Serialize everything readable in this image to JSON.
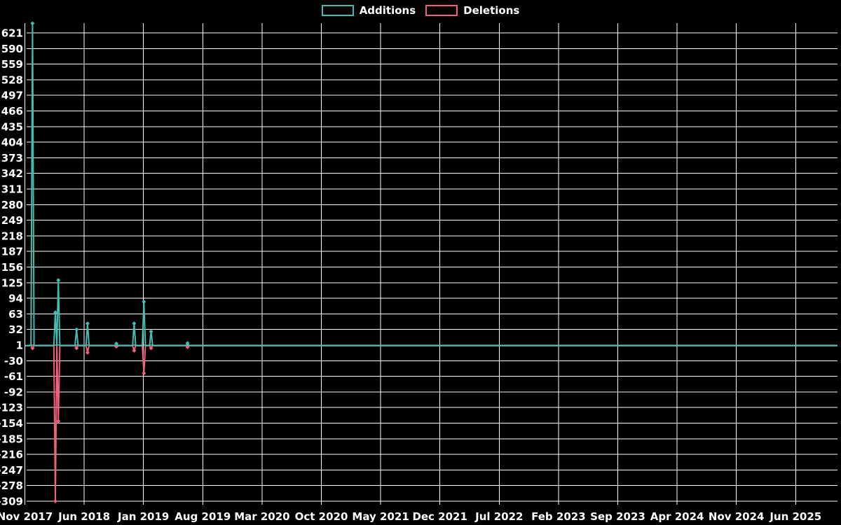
{
  "legend": {
    "items": [
      {
        "label": "Additions",
        "color": "#45bcb2"
      },
      {
        "label": "Deletions",
        "color": "#f2607d"
      }
    ]
  },
  "colors": {
    "background": "#000000",
    "gridline": "#ffffff",
    "tick_text": "#ffffff",
    "additions": "#45bcb2",
    "deletions": "#f2607d"
  },
  "chart_data": {
    "type": "line",
    "title": "",
    "background": "#000000",
    "grid": true,
    "legend_position": "top-center",
    "x_axis": {
      "start": "Nov 2017",
      "end": "Jun 2025",
      "tick_interval_months": 7,
      "tick_labels": [
        "Nov 2017",
        "Jun 2018",
        "Jan 2019",
        "Aug 2019",
        "Mar 2020",
        "Oct 2020",
        "May 2021",
        "Dec 2021",
        "Jul 2022",
        "Feb 2023",
        "Sep 2023",
        "Apr 2024",
        "Nov 2024",
        "Jun 2025"
      ]
    },
    "y_axis": {
      "max": 621,
      "min": -309,
      "step": 31,
      "ticks": [
        621,
        590,
        559,
        528,
        497,
        466,
        435,
        404,
        373,
        342,
        311,
        280,
        249,
        218,
        187,
        156,
        125,
        94,
        63,
        32,
        1,
        -30,
        -61,
        -92,
        -123,
        -154,
        -185,
        -216,
        -247,
        -278,
        -309
      ]
    },
    "series": [
      {
        "name": "Additions",
        "color": "#45bcb2",
        "baseline": 0,
        "points": [
          {
            "date": "Dec 2017",
            "m": 0.9,
            "v": 640
          },
          {
            "date": "Feb 2018",
            "m": 3.6,
            "v": 66
          },
          {
            "date": "Mar 2018",
            "m": 3.95,
            "v": 130
          },
          {
            "date": "May 2018",
            "m": 6.1,
            "v": 32
          },
          {
            "date": "Jun 2018",
            "m": 7.4,
            "v": 44
          },
          {
            "date": "Oct 2018",
            "m": 10.8,
            "v": 4
          },
          {
            "date": "Dec 2018",
            "m": 12.9,
            "v": 44
          },
          {
            "date": "Jan 2019",
            "m": 14.05,
            "v": 87
          },
          {
            "date": "Feb 2019",
            "m": 14.9,
            "v": 28
          },
          {
            "date": "Jun 2019",
            "m": 19.2,
            "v": 5
          }
        ]
      },
      {
        "name": "Deletions",
        "color": "#f2607d",
        "baseline": 0,
        "points": [
          {
            "date": "Dec 2017",
            "m": 0.9,
            "v": -5
          },
          {
            "date": "Feb 2018",
            "m": 3.6,
            "v": -309
          },
          {
            "date": "Mar 2018",
            "m": 3.95,
            "v": -150
          },
          {
            "date": "May 2018",
            "m": 6.1,
            "v": -5
          },
          {
            "date": "Jun 2018",
            "m": 7.4,
            "v": -14
          },
          {
            "date": "Oct 2018",
            "m": 10.8,
            "v": -2
          },
          {
            "date": "Dec 2018",
            "m": 12.9,
            "v": -10
          },
          {
            "date": "Jan 2019",
            "m": 14.05,
            "v": -55
          },
          {
            "date": "Feb 2019",
            "m": 14.9,
            "v": -5
          },
          {
            "date": "Jun 2019",
            "m": 19.2,
            "v": -3
          }
        ]
      }
    ]
  }
}
